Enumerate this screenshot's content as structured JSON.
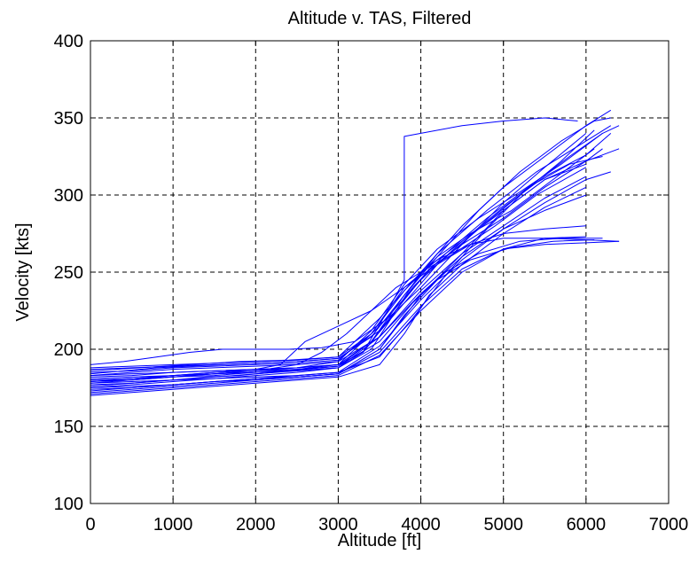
{
  "chart_data": {
    "type": "line",
    "title": "Altitude v. TAS, Filtered",
    "xlabel": "Altitude [ft]",
    "ylabel": "Velocity [kts]",
    "xlim": [
      0,
      7000
    ],
    "ylim": [
      100,
      400
    ],
    "xticks": [
      0,
      1000,
      2000,
      3000,
      4000,
      5000,
      6000,
      7000
    ],
    "yticks": [
      100,
      150,
      200,
      250,
      300,
      350,
      400
    ],
    "xtick_labels": [
      "0",
      "1000",
      "2000",
      "3000",
      "4000",
      "5000",
      "6000",
      "7000"
    ],
    "ytick_labels": [
      "100",
      "150",
      "200",
      "250",
      "300",
      "350",
      "400"
    ],
    "grid": true,
    "legend": false,
    "series_color": "#0000ff",
    "series": [
      {
        "x": [
          0,
          500,
          1000,
          1500,
          2000,
          2500,
          3000,
          3400,
          3700,
          4000,
          4500,
          5000,
          5500,
          6000,
          6300
        ],
        "y": [
          178,
          180,
          182,
          184,
          185,
          186,
          188,
          200,
          225,
          250,
          280,
          305,
          325,
          345,
          355
        ]
      },
      {
        "x": [
          0,
          500,
          1000,
          1500,
          2000,
          2500,
          3000,
          3400,
          3800,
          4200,
          4700,
          5200,
          5700,
          6100,
          6300
        ],
        "y": [
          182,
          183,
          185,
          186,
          187,
          188,
          190,
          205,
          235,
          260,
          290,
          315,
          335,
          348,
          350
        ]
      },
      {
        "x": [
          0,
          500,
          1000,
          1500,
          2000,
          2500,
          3000,
          3500,
          3900,
          4300,
          4800,
          5300,
          5800,
          6200,
          6400
        ],
        "y": [
          175,
          177,
          179,
          181,
          182,
          183,
          185,
          195,
          220,
          248,
          278,
          305,
          325,
          340,
          345
        ]
      },
      {
        "x": [
          0,
          500,
          1000,
          1500,
          2000,
          2500,
          3000,
          3500,
          4000,
          4500,
          5000,
          5500,
          6000,
          6400
        ],
        "y": [
          172,
          174,
          176,
          178,
          180,
          182,
          184,
          200,
          235,
          262,
          290,
          310,
          322,
          330
        ]
      },
      {
        "x": [
          0,
          500,
          1000,
          1500,
          2000,
          2500,
          3000,
          3400,
          3800,
          4200,
          4600,
          5000,
          5500,
          6000,
          6400
        ],
        "y": [
          185,
          186,
          188,
          189,
          190,
          191,
          193,
          210,
          240,
          258,
          268,
          272,
          272,
          271,
          270
        ]
      },
      {
        "x": [
          0,
          500,
          1000,
          1500,
          2000,
          2500,
          3000,
          3500,
          3900,
          4300,
          4700,
          5200,
          5700,
          6200
        ],
        "y": [
          180,
          181,
          183,
          185,
          186,
          187,
          189,
          205,
          230,
          250,
          262,
          270,
          272,
          272
        ]
      },
      {
        "x": [
          0,
          400,
          800,
          1200,
          1600,
          2000,
          2400,
          2800,
          3200,
          3600,
          4000,
          4500,
          5000,
          5500,
          6000
        ],
        "y": [
          190,
          192,
          195,
          198,
          200,
          200,
          200,
          201,
          205,
          220,
          240,
          268,
          295,
          318,
          340
        ]
      },
      {
        "x": [
          0,
          500,
          1000,
          1500,
          2000,
          2500,
          3000,
          3500,
          3800,
          4100,
          4500,
          5000,
          5500,
          6000
        ],
        "y": [
          170,
          172,
          174,
          176,
          178,
          180,
          182,
          190,
          210,
          235,
          255,
          275,
          292,
          305
        ]
      },
      {
        "x": [
          0,
          500,
          1000,
          1500,
          2000,
          2500,
          3000,
          3500,
          4000,
          4500,
          5000,
          5500,
          6000,
          6300
        ],
        "y": [
          183,
          184,
          185,
          186,
          187,
          188,
          190,
          215,
          245,
          270,
          292,
          312,
          326,
          340
        ]
      },
      {
        "x": [
          0,
          500,
          1000,
          1500,
          2000,
          2500,
          3000,
          3300,
          3600,
          3900,
          4300,
          4800,
          5300,
          5800,
          6200
        ],
        "y": [
          178,
          179,
          180,
          181,
          183,
          185,
          188,
          198,
          218,
          240,
          262,
          285,
          305,
          320,
          325
        ]
      },
      {
        "x": [
          0,
          500,
          1000,
          1500,
          2000,
          2500,
          3000,
          3500,
          4000,
          4500,
          5000,
          5500,
          6000
        ],
        "y": [
          176,
          178,
          180,
          182,
          184,
          186,
          188,
          208,
          238,
          262,
          280,
          298,
          312
        ]
      },
      {
        "x": [
          0,
          600,
          1200,
          1800,
          2400,
          3000,
          3400,
          3800,
          4200,
          4600,
          5100,
          5600,
          6100
        ],
        "y": [
          186,
          188,
          190,
          192,
          193,
          195,
          210,
          238,
          260,
          275,
          290,
          310,
          330
        ]
      },
      {
        "x": [
          0,
          500,
          1000,
          1500,
          2000,
          2500,
          3000,
          3500,
          4000,
          4500,
          5000,
          5500,
          6000,
          6400
        ],
        "y": [
          174,
          175,
          177,
          179,
          181,
          182,
          184,
          198,
          228,
          252,
          265,
          268,
          269,
          270
        ]
      },
      {
        "x": [
          0,
          500,
          1000,
          1500,
          2000,
          2500,
          3000,
          3500,
          4000,
          4500,
          5000,
          5500,
          6000
        ],
        "y": [
          188,
          189,
          190,
          191,
          192,
          193,
          195,
          220,
          250,
          270,
          290,
          310,
          320
        ]
      },
      {
        "x": [
          0,
          500,
          1000,
          1500,
          2000,
          2500,
          2800,
          3100,
          3400,
          3700,
          4000,
          4400,
          4900,
          5400,
          6000
        ],
        "y": [
          181,
          182,
          183,
          184,
          186,
          190,
          198,
          210,
          225,
          240,
          250,
          262,
          280,
          300,
          318
        ]
      },
      {
        "x": [
          0,
          500,
          1000,
          1500,
          2000,
          2500,
          3000,
          3400,
          3800,
          4200,
          4700,
          5200,
          5700,
          6200
        ],
        "y": [
          179,
          180,
          182,
          184,
          186,
          188,
          192,
          212,
          242,
          265,
          285,
          302,
          320,
          340
        ]
      },
      {
        "x": [
          0,
          500,
          1000,
          1500,
          2000,
          2500,
          3000,
          3500,
          3800,
          4200,
          4600,
          5100,
          5600,
          6100
        ],
        "y": [
          175,
          176,
          177,
          179,
          180,
          182,
          184,
          200,
          222,
          245,
          258,
          266,
          270,
          271
        ]
      },
      {
        "x": [
          0,
          400,
          800,
          1200,
          1600,
          2000,
          2500,
          3000,
          3400,
          3800,
          4200,
          4800,
          5400,
          6000,
          6300
        ],
        "y": [
          184,
          186,
          188,
          189,
          190,
          191,
          192,
          194,
          208,
          235,
          262,
          290,
          315,
          335,
          345
        ]
      },
      {
        "x": [
          0,
          500,
          1000,
          1500,
          2000,
          2500,
          3000,
          3500,
          4000,
          4500,
          5000,
          5500,
          6000
        ],
        "y": [
          171,
          173,
          175,
          177,
          179,
          181,
          183,
          196,
          225,
          250,
          265,
          272,
          273
        ]
      },
      {
        "x": [
          0,
          500,
          1000,
          1500,
          2000,
          2500,
          3000,
          3500,
          3800,
          4100,
          4500,
          5000,
          5500,
          6000,
          6200
        ],
        "y": [
          187,
          188,
          189,
          190,
          191,
          192,
          194,
          212,
          232,
          252,
          268,
          285,
          305,
          322,
          330
        ]
      },
      {
        "x": [
          0,
          500,
          1000,
          1500,
          2000,
          2500,
          3000,
          3300,
          3600,
          3800,
          3800,
          4000,
          4500,
          5000,
          5500,
          5900
        ],
        "y": [
          180,
          181,
          182,
          183,
          185,
          187,
          190,
          198,
          225,
          245,
          338,
          340,
          345,
          348,
          350,
          348
        ]
      },
      {
        "x": [
          0,
          500,
          1000,
          1400,
          1800,
          2200,
          2600,
          3000,
          3400,
          3800,
          4200,
          4700,
          5200,
          5700,
          6100
        ],
        "y": [
          177,
          178,
          180,
          182,
          183,
          185,
          187,
          189,
          205,
          230,
          255,
          278,
          300,
          322,
          342
        ]
      },
      {
        "x": [
          0,
          500,
          1000,
          1500,
          2000,
          2500,
          3000,
          3500,
          4000,
          4500,
          5000,
          5500,
          6000,
          6300
        ],
        "y": [
          173,
          175,
          177,
          179,
          181,
          183,
          185,
          202,
          232,
          258,
          278,
          295,
          310,
          315
        ]
      },
      {
        "x": [
          0,
          500,
          1000,
          1500,
          2000,
          2500,
          3000,
          3500,
          4000,
          4500,
          5000,
          5500,
          6000
        ],
        "y": [
          183,
          185,
          187,
          188,
          189,
          190,
          192,
          208,
          236,
          260,
          278,
          290,
          300
        ]
      },
      {
        "x": [
          0,
          500,
          1000,
          1500,
          2000,
          2300,
          2600,
          3000,
          3400,
          3800,
          4200,
          4600,
          5000,
          5500,
          6000
        ],
        "y": [
          179,
          181,
          183,
          185,
          187,
          190,
          205,
          215,
          225,
          240,
          255,
          268,
          275,
          278,
          280
        ]
      }
    ]
  }
}
